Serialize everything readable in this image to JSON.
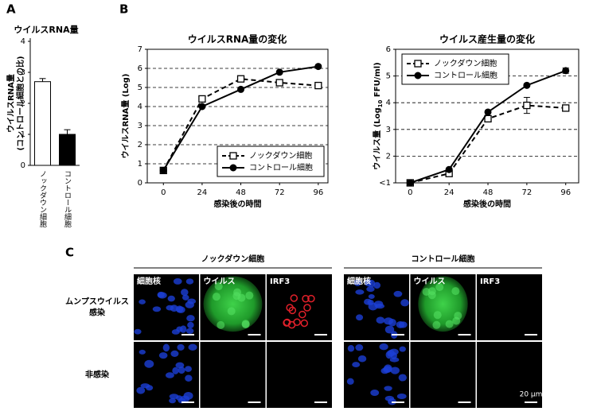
{
  "panel_labels": [
    "A",
    "B",
    "C"
  ],
  "chart_data": [
    {
      "type": "bar",
      "title": "ウイルスRNA量",
      "y_label": [
        "ウイルスRNA量",
        "(コントロール細胞との比)"
      ],
      "categories": [
        "ノックダウン細胞",
        "コントロール細胞"
      ],
      "values": [
        2.7,
        1.0
      ],
      "errors": [
        0.1,
        0.15
      ],
      "colors": [
        "#ffffff",
        "#000000"
      ],
      "ylim": [
        0,
        4
      ],
      "yticks": [
        0,
        1,
        2,
        3,
        4
      ]
    },
    {
      "type": "line",
      "title": "ウイルスRNA量の変化",
      "x_label": "感染後の時間",
      "y_label": [
        "ウイルスRNA量 (Log)"
      ],
      "x": [
        0,
        24,
        48,
        72,
        96
      ],
      "xlim": [
        -10,
        102
      ],
      "xticks": [
        0,
        24,
        48,
        72,
        96
      ],
      "ylim": [
        0,
        7
      ],
      "yticks": [
        0,
        1,
        2,
        3,
        4,
        5,
        6,
        7
      ],
      "grid": true,
      "legend": "lower right",
      "series": [
        {
          "name": "ノックダウン細胞",
          "color": "#000000",
          "line_style": "dashed",
          "marker": "open-square",
          "values": [
            0.65,
            4.4,
            5.45,
            5.25,
            5.1
          ]
        },
        {
          "name": "コントロール細胞",
          "color": "#000000",
          "line_style": "solid",
          "marker": "filled-circle",
          "values": [
            0.65,
            4.0,
            4.9,
            5.8,
            6.1
          ]
        }
      ]
    },
    {
      "type": "line",
      "title": "ウイルス産生量の変化",
      "x_label": "感染後の時間",
      "y_label": [
        "ウイルス量 (Log",
        "10",
        " FFU/ml)"
      ],
      "x": [
        0,
        24,
        48,
        72,
        96
      ],
      "xlim": [
        -9,
        104
      ],
      "xticks": [
        0,
        24,
        48,
        72,
        96
      ],
      "ylim": [
        1,
        6
      ],
      "yticks": [
        {
          "value": 1,
          "label": "<1"
        },
        2,
        3,
        4,
        5,
        6
      ],
      "grid": true,
      "legend": "upper left",
      "series": [
        {
          "name": "ノックダウン細胞",
          "color": "#000000",
          "line_style": "dashed",
          "marker": "open-square",
          "values": [
            1,
            1.35,
            3.4,
            3.9,
            3.8
          ],
          "errors": [
            0,
            0,
            0.1,
            0.3,
            0.1
          ]
        },
        {
          "name": "コントロール細胞",
          "color": "#000000",
          "line_style": "solid",
          "marker": "filled-circle",
          "values": [
            1,
            1.5,
            3.65,
            4.65,
            5.2
          ],
          "errors": [
            0,
            0,
            0,
            0,
            0.1
          ]
        }
      ]
    }
  ],
  "micrographs": {
    "groups": [
      "ノックダウン細胞",
      "コントロール細胞"
    ],
    "rows": [
      [
        "ムンプスウイルス",
        "感染"
      ],
      [
        "非感染"
      ]
    ],
    "columns": [
      "細胞核",
      "ウイルス",
      "IRF3"
    ],
    "scale_bar": "20 μm"
  }
}
